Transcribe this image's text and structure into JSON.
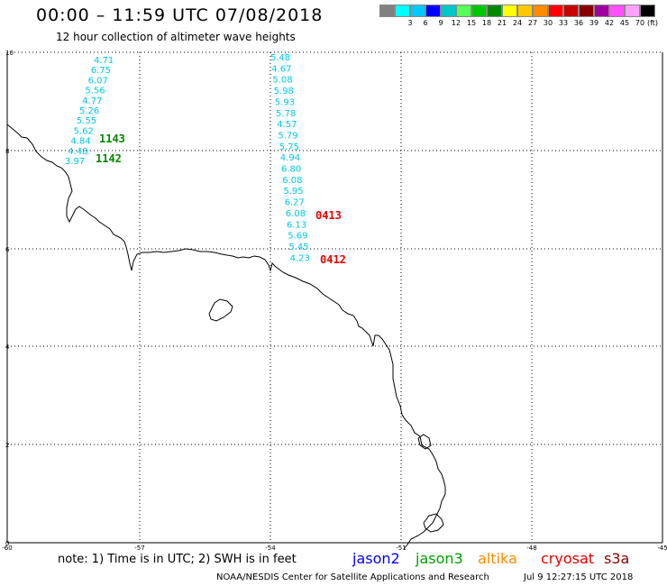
{
  "header": {
    "title": "00:00 – 11:59 UTC 07/08/2018",
    "subtitle": "12 hour collection of altimeter wave heights"
  },
  "legend": {
    "unit": "(ft)",
    "colors": [
      "#808080",
      "#00ffff",
      "#00c8ff",
      "#0000ff",
      "#00c8c8",
      "#55ff55",
      "#00c800",
      "#008800",
      "#ffff00",
      "#ffc800",
      "#ff8c00",
      "#ff0000",
      "#c80000",
      "#880000",
      "#a000a0",
      "#ff50ff",
      "#ffa0ff",
      "#000000"
    ],
    "labels": [
      "3",
      "6",
      "9",
      "12",
      "15",
      "18",
      "21",
      "24",
      "27",
      "30",
      "33",
      "36",
      "39",
      "42",
      "45",
      "70"
    ]
  },
  "map": {
    "lon_ticks": [
      "-60",
      "-57",
      "-54",
      "-51",
      "-48",
      "-45"
    ],
    "lat_ticks": [
      "10",
      "8",
      "6",
      "4",
      "2",
      "0"
    ],
    "track_left": {
      "color": "#00c8e6",
      "values": [
        "4.71",
        "6.75",
        "6.07",
        "5.56",
        "4.77",
        "5.26",
        "5.55",
        "5.62",
        "4.84",
        "4.48",
        "3.97"
      ],
      "time_labels": [
        {
          "text": "1143",
          "color": "#008800"
        },
        {
          "text": "1142",
          "color": "#008800"
        }
      ]
    },
    "track_right": {
      "color": "#00c8e6",
      "values": [
        "5.48",
        "4.67",
        "5.08",
        "5.98",
        "5.93",
        "5.78",
        "4.57",
        "5.79",
        "5.75",
        "4.94",
        "6.80",
        "6.08",
        "5.95",
        "6.27",
        "6.08",
        "6.13",
        "5.69",
        "5.45",
        "4.23"
      ],
      "time_labels": [
        {
          "text": "0413",
          "color": "#e60000"
        },
        {
          "text": "0412",
          "color": "#e60000"
        }
      ]
    }
  },
  "footer": {
    "note": "note:  1) Time is in UTC;  2) SWH is in feet",
    "satellites": [
      {
        "name": "jason2",
        "color": "#0000ff"
      },
      {
        "name": "jason3",
        "color": "#00a000"
      },
      {
        "name": "altika",
        "color": "#ff8c00"
      },
      {
        "name": "cryosat",
        "color": "#e60000"
      },
      {
        "name": "s3a",
        "color": "#880000"
      }
    ],
    "credit": "NOAA/NESDIS Center for Satellite Applications and Research",
    "timestamp": "Jul  9 12:27:15 UTC 2018"
  }
}
